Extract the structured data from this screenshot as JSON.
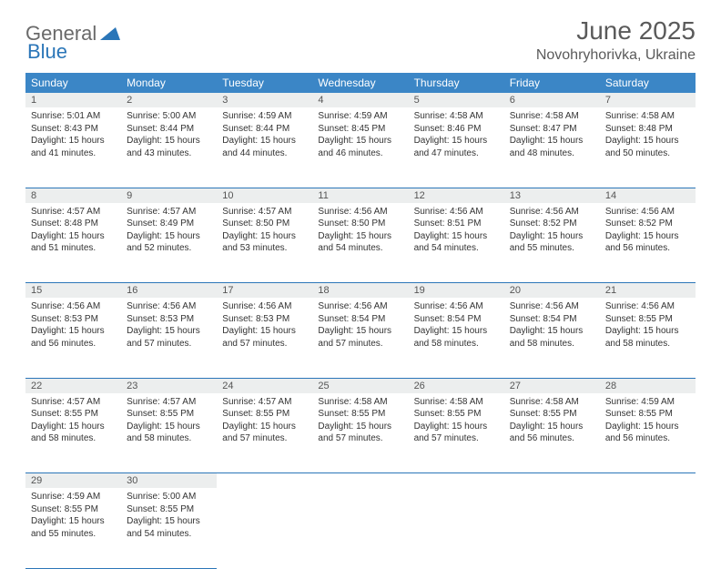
{
  "logo": {
    "part1": "General",
    "part2": "Blue"
  },
  "title": "June 2025",
  "location": "Novohryhorivka, Ukraine",
  "colors": {
    "header_bg": "#3b86c6",
    "header_text": "#ffffff",
    "daynum_bg": "#eceeee",
    "border": "#2b76b8",
    "title_color": "#5a5a5a",
    "logo_gray": "#6a6a6a",
    "logo_blue": "#2b76b8"
  },
  "weekdays": [
    "Sunday",
    "Monday",
    "Tuesday",
    "Wednesday",
    "Thursday",
    "Friday",
    "Saturday"
  ],
  "weeks": [
    [
      {
        "n": "1",
        "sr": "5:01 AM",
        "ss": "8:43 PM",
        "dl": "15 hours and 41 minutes."
      },
      {
        "n": "2",
        "sr": "5:00 AM",
        "ss": "8:44 PM",
        "dl": "15 hours and 43 minutes."
      },
      {
        "n": "3",
        "sr": "4:59 AM",
        "ss": "8:44 PM",
        "dl": "15 hours and 44 minutes."
      },
      {
        "n": "4",
        "sr": "4:59 AM",
        "ss": "8:45 PM",
        "dl": "15 hours and 46 minutes."
      },
      {
        "n": "5",
        "sr": "4:58 AM",
        "ss": "8:46 PM",
        "dl": "15 hours and 47 minutes."
      },
      {
        "n": "6",
        "sr": "4:58 AM",
        "ss": "8:47 PM",
        "dl": "15 hours and 48 minutes."
      },
      {
        "n": "7",
        "sr": "4:58 AM",
        "ss": "8:48 PM",
        "dl": "15 hours and 50 minutes."
      }
    ],
    [
      {
        "n": "8",
        "sr": "4:57 AM",
        "ss": "8:48 PM",
        "dl": "15 hours and 51 minutes."
      },
      {
        "n": "9",
        "sr": "4:57 AM",
        "ss": "8:49 PM",
        "dl": "15 hours and 52 minutes."
      },
      {
        "n": "10",
        "sr": "4:57 AM",
        "ss": "8:50 PM",
        "dl": "15 hours and 53 minutes."
      },
      {
        "n": "11",
        "sr": "4:56 AM",
        "ss": "8:50 PM",
        "dl": "15 hours and 54 minutes."
      },
      {
        "n": "12",
        "sr": "4:56 AM",
        "ss": "8:51 PM",
        "dl": "15 hours and 54 minutes."
      },
      {
        "n": "13",
        "sr": "4:56 AM",
        "ss": "8:52 PM",
        "dl": "15 hours and 55 minutes."
      },
      {
        "n": "14",
        "sr": "4:56 AM",
        "ss": "8:52 PM",
        "dl": "15 hours and 56 minutes."
      }
    ],
    [
      {
        "n": "15",
        "sr": "4:56 AM",
        "ss": "8:53 PM",
        "dl": "15 hours and 56 minutes."
      },
      {
        "n": "16",
        "sr": "4:56 AM",
        "ss": "8:53 PM",
        "dl": "15 hours and 57 minutes."
      },
      {
        "n": "17",
        "sr": "4:56 AM",
        "ss": "8:53 PM",
        "dl": "15 hours and 57 minutes."
      },
      {
        "n": "18",
        "sr": "4:56 AM",
        "ss": "8:54 PM",
        "dl": "15 hours and 57 minutes."
      },
      {
        "n": "19",
        "sr": "4:56 AM",
        "ss": "8:54 PM",
        "dl": "15 hours and 58 minutes."
      },
      {
        "n": "20",
        "sr": "4:56 AM",
        "ss": "8:54 PM",
        "dl": "15 hours and 58 minutes."
      },
      {
        "n": "21",
        "sr": "4:56 AM",
        "ss": "8:55 PM",
        "dl": "15 hours and 58 minutes."
      }
    ],
    [
      {
        "n": "22",
        "sr": "4:57 AM",
        "ss": "8:55 PM",
        "dl": "15 hours and 58 minutes."
      },
      {
        "n": "23",
        "sr": "4:57 AM",
        "ss": "8:55 PM",
        "dl": "15 hours and 58 minutes."
      },
      {
        "n": "24",
        "sr": "4:57 AM",
        "ss": "8:55 PM",
        "dl": "15 hours and 57 minutes."
      },
      {
        "n": "25",
        "sr": "4:58 AM",
        "ss": "8:55 PM",
        "dl": "15 hours and 57 minutes."
      },
      {
        "n": "26",
        "sr": "4:58 AM",
        "ss": "8:55 PM",
        "dl": "15 hours and 57 minutes."
      },
      {
        "n": "27",
        "sr": "4:58 AM",
        "ss": "8:55 PM",
        "dl": "15 hours and 56 minutes."
      },
      {
        "n": "28",
        "sr": "4:59 AM",
        "ss": "8:55 PM",
        "dl": "15 hours and 56 minutes."
      }
    ],
    [
      {
        "n": "29",
        "sr": "4:59 AM",
        "ss": "8:55 PM",
        "dl": "15 hours and 55 minutes."
      },
      {
        "n": "30",
        "sr": "5:00 AM",
        "ss": "8:55 PM",
        "dl": "15 hours and 54 minutes."
      },
      null,
      null,
      null,
      null,
      null
    ]
  ],
  "labels": {
    "sunrise": "Sunrise: ",
    "sunset": "Sunset: ",
    "daylight": "Daylight: "
  }
}
